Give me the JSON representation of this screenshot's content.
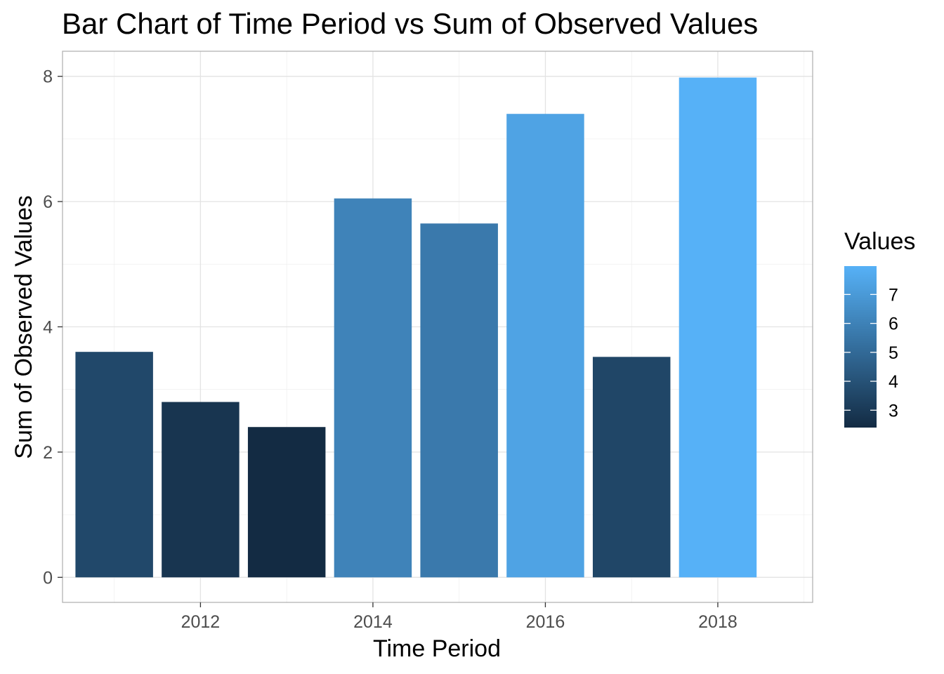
{
  "chart_data": {
    "type": "bar",
    "title": "Bar Chart of Time Period vs Sum of Observed Values",
    "xlabel": "Time Period",
    "ylabel": "Sum of Observed Values",
    "x": [
      2011,
      2012,
      2013,
      2014,
      2015,
      2016,
      2017,
      2018
    ],
    "values": [
      3.6,
      2.8,
      2.4,
      6.05,
      5.65,
      7.4,
      3.52,
      7.98
    ],
    "xlim": [
      2010.4,
      2019.1
    ],
    "ylim": [
      -0.4,
      8.4
    ],
    "x_ticks": [
      2012,
      2014,
      2016,
      2018
    ],
    "x_tick_labels": [
      "2012",
      "2014",
      "2016",
      "2018"
    ],
    "y_ticks": [
      0,
      2,
      4,
      6,
      8
    ],
    "y_tick_labels": [
      "0",
      "2",
      "4",
      "6",
      "8"
    ],
    "grid": true,
    "fill_scale": {
      "title": "Values",
      "low": 2.4,
      "high": 7.98,
      "low_color": "#132b43",
      "high_color": "#56b1f7",
      "breaks": [
        3,
        4,
        5,
        6,
        7
      ],
      "break_labels": [
        "3",
        "4",
        "5",
        "6",
        "7"
      ]
    },
    "legend_position": "right"
  }
}
